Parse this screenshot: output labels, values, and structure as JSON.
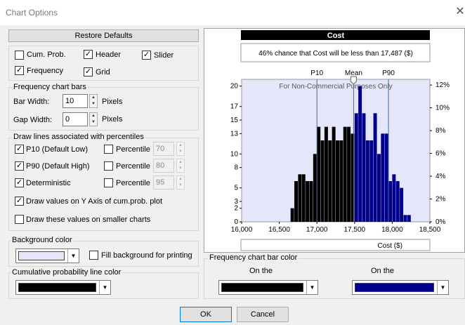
{
  "window": {
    "title": "Chart Options",
    "close_icon": "close-icon"
  },
  "restore_defaults": "Restore Defaults",
  "options": {
    "cum_prob": {
      "label": "Cum. Prob.",
      "checked": false
    },
    "header": {
      "label": "Header",
      "checked": true
    },
    "slider": {
      "label": "Slider",
      "checked": true
    },
    "frequency": {
      "label": "Frequency",
      "checked": true
    },
    "grid": {
      "label": "Grid",
      "checked": true
    }
  },
  "freq_bars": {
    "legend": "Frequency chart bars",
    "bar_width_label": "Bar Width:",
    "bar_width_value": "10",
    "gap_width_label": "Gap Width:",
    "gap_width_value": "0",
    "pixels": "Pixels"
  },
  "percentile_lines": {
    "legend": "Draw lines associated with percentiles",
    "rows": [
      {
        "label": "P10 (Default Low)",
        "checked": true,
        "pct_label": "Percentile",
        "pct_checked": false,
        "value": "70"
      },
      {
        "label": "P90 (Default High)",
        "checked": true,
        "pct_label": "Percentile",
        "pct_checked": false,
        "value": "80"
      },
      {
        "label": "Deterministic",
        "checked": true,
        "pct_label": "Percentile",
        "pct_checked": false,
        "value": "95"
      }
    ],
    "draw_on_axis": {
      "label": "Draw values on Y Axis of cum.prob. plot",
      "checked": true
    },
    "draw_smaller": {
      "label": "Draw these values on smaller charts",
      "checked": false
    }
  },
  "background": {
    "legend": "Background color",
    "color": "#e6e6fa",
    "fill_print": {
      "label": "Fill background for printing",
      "checked": false
    }
  },
  "cum_line": {
    "legend": "Cumulative probability line color",
    "color": "#000000"
  },
  "bar_color": {
    "legend": "Frequency chart bar color",
    "left_label": "On the",
    "right_label": "On the",
    "left_color": "#000000",
    "right_color": "#00008b"
  },
  "buttons": {
    "ok": "OK",
    "cancel": "Cancel"
  },
  "chart_data": {
    "type": "bar",
    "title": "Cost",
    "subtitle": "46% chance that Cost will be less than 17,487 ($)",
    "watermark": "For Non-Commercial Purposes Only",
    "xlabel": "Cost ($)",
    "xlim": [
      16000,
      18500
    ],
    "x_ticks": [
      "16,000",
      "16,500",
      "17,000",
      "17,500",
      "18,000",
      "18,500"
    ],
    "y_left_ticks": [
      "0",
      "2",
      "3",
      "5",
      "8",
      "10",
      "13",
      "15",
      "17",
      "20"
    ],
    "y_right_ticks": [
      "0%",
      "2%",
      "4%",
      "6%",
      "8%",
      "10%",
      "12%"
    ],
    "ylim": [
      0,
      21
    ],
    "markers": [
      {
        "label": "P10",
        "x": 17000
      },
      {
        "label": "Mean",
        "x": 17487
      },
      {
        "label": "P90",
        "x": 17950
      }
    ],
    "bin_width": 50,
    "bins": [
      {
        "x": 16650,
        "count": 2
      },
      {
        "x": 16700,
        "count": 6
      },
      {
        "x": 16750,
        "count": 7
      },
      {
        "x": 16800,
        "count": 7
      },
      {
        "x": 16850,
        "count": 6
      },
      {
        "x": 16900,
        "count": 6
      },
      {
        "x": 16950,
        "count": 10
      },
      {
        "x": 17000,
        "count": 14
      },
      {
        "x": 17050,
        "count": 12
      },
      {
        "x": 17100,
        "count": 14
      },
      {
        "x": 17150,
        "count": 12
      },
      {
        "x": 17200,
        "count": 14
      },
      {
        "x": 17250,
        "count": 12
      },
      {
        "x": 17300,
        "count": 12
      },
      {
        "x": 17350,
        "count": 14
      },
      {
        "x": 17400,
        "count": 14
      },
      {
        "x": 17450,
        "count": 13
      },
      {
        "x": 17500,
        "count": 16
      },
      {
        "x": 17550,
        "count": 20
      },
      {
        "x": 17600,
        "count": 16
      },
      {
        "x": 17650,
        "count": 12
      },
      {
        "x": 17700,
        "count": 12
      },
      {
        "x": 17750,
        "count": 16
      },
      {
        "x": 17800,
        "count": 10
      },
      {
        "x": 17850,
        "count": 13
      },
      {
        "x": 17900,
        "count": 13
      },
      {
        "x": 17950,
        "count": 6
      },
      {
        "x": 18000,
        "count": 7
      },
      {
        "x": 18050,
        "count": 6
      },
      {
        "x": 18100,
        "count": 5
      },
      {
        "x": 18150,
        "count": 1
      },
      {
        "x": 18200,
        "count": 1
      }
    ],
    "color_split_at": 17487,
    "left_color": "#000000",
    "right_color": "#00008b",
    "plot_background": "#e6e6fa",
    "grid": true
  }
}
